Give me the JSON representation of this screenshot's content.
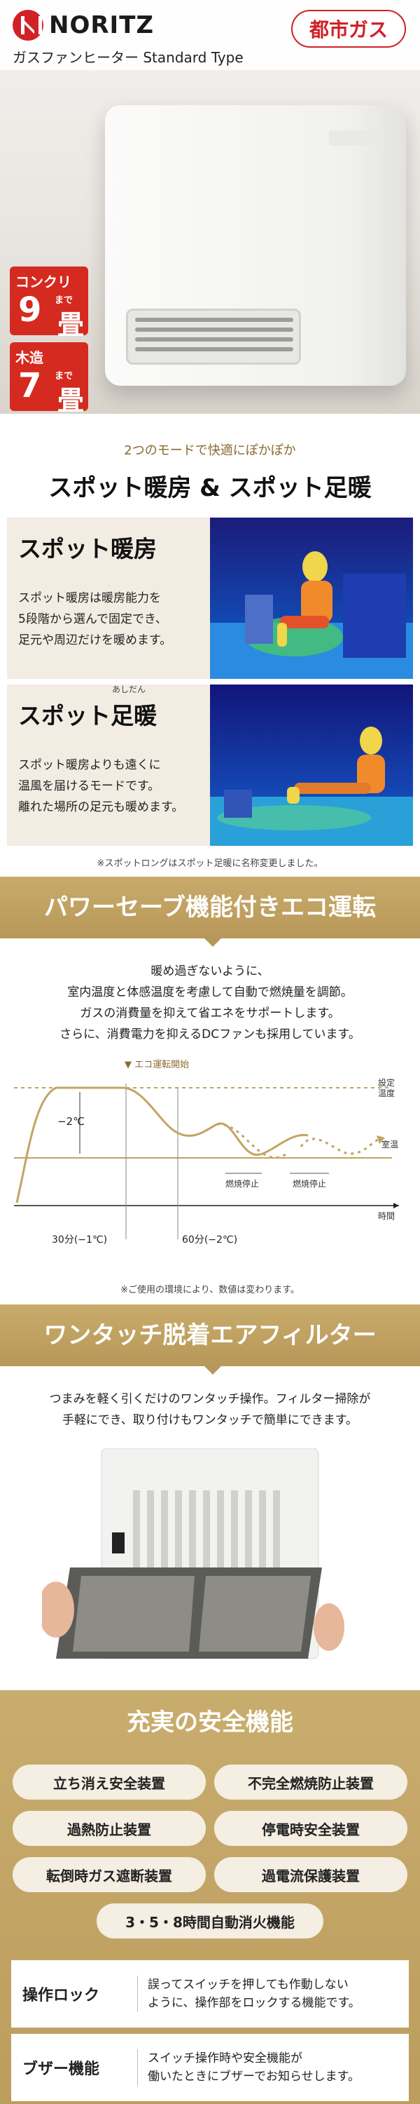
{
  "hero": {
    "brand": "NORITZ",
    "subtitle": "ガスファンヒーター Standard Type",
    "gas_badge": "都市ガス",
    "capacity": [
      {
        "label": "コンクリ",
        "num": "9",
        "made": "まで",
        "unit": "畳"
      },
      {
        "label": "木造",
        "num": "7",
        "made": "まで",
        "unit": "畳"
      }
    ]
  },
  "spot": {
    "sub": "2つのモードで快適にぽかぽか",
    "title": "スポット暖房 & スポット足暖",
    "modes": [
      {
        "title": "スポット暖房",
        "ruby": "",
        "text": "スポット暖房は暖房能力を\n5段階から選んで固定でき、\n足元や周辺だけを暖めます。"
      },
      {
        "title": "スポット足暖",
        "ruby": "あしだん",
        "text": "スポット暖房よりも遠くに\n温風を届けるモードです。\n離れた場所の足元も暖めます。"
      }
    ],
    "note": "※スポットロングはスポット足暖に名称変更しました。"
  },
  "eco": {
    "banner": "パワーセーブ機能付きエコ運転",
    "intro": "暖め過ぎないように、\n室内温度と体感温度を考慮して自動で燃焼量を調節。\nガスの消費量を抑えて省エネをサポートします。\nさらに、消費電力を抑えるDCファンも採用しています。",
    "chart_labels": {
      "eco_start": "▼ エコ運転開始",
      "set_temp_1": "設定",
      "set_temp_2": "温度",
      "room_temp": "室温",
      "time": "時間",
      "minus2": "−2℃",
      "stop1": "燃焼停止",
      "stop2": "燃焼停止",
      "t30": "30分(−1℃)",
      "t60": "60分(−2℃)"
    },
    "note": "※ご使用の環境により、数値は変わります。"
  },
  "filter": {
    "banner": "ワンタッチ脱着エアフィルター",
    "intro": "つまみを軽く引くだけのワンタッチ操作。フィルター掃除が\n手軽にでき、取り付けもワンタッチで簡単にできます。"
  },
  "safety": {
    "title": "充実の安全機能",
    "features": [
      "立ち消え安全装置",
      "不完全燃焼防止装置",
      "過熱防止装置",
      "停電時安全装置",
      "転倒時ガス遮断装置",
      "過電流保護装置",
      "3・5・8時間自動消火機能"
    ],
    "details": [
      {
        "label": "操作ロック",
        "text": "誤ってスイッチを押しても作動しない\nように、操作部をロックする機能です。"
      },
      {
        "label": "ブザー機能",
        "text": "スイッチ操作時や安全機能が\n働いたときにブザーでお知らせします。"
      }
    ]
  },
  "colors": {
    "brand_red": "#d22027",
    "gold": "#c2a463",
    "cream": "#f3ece2"
  }
}
